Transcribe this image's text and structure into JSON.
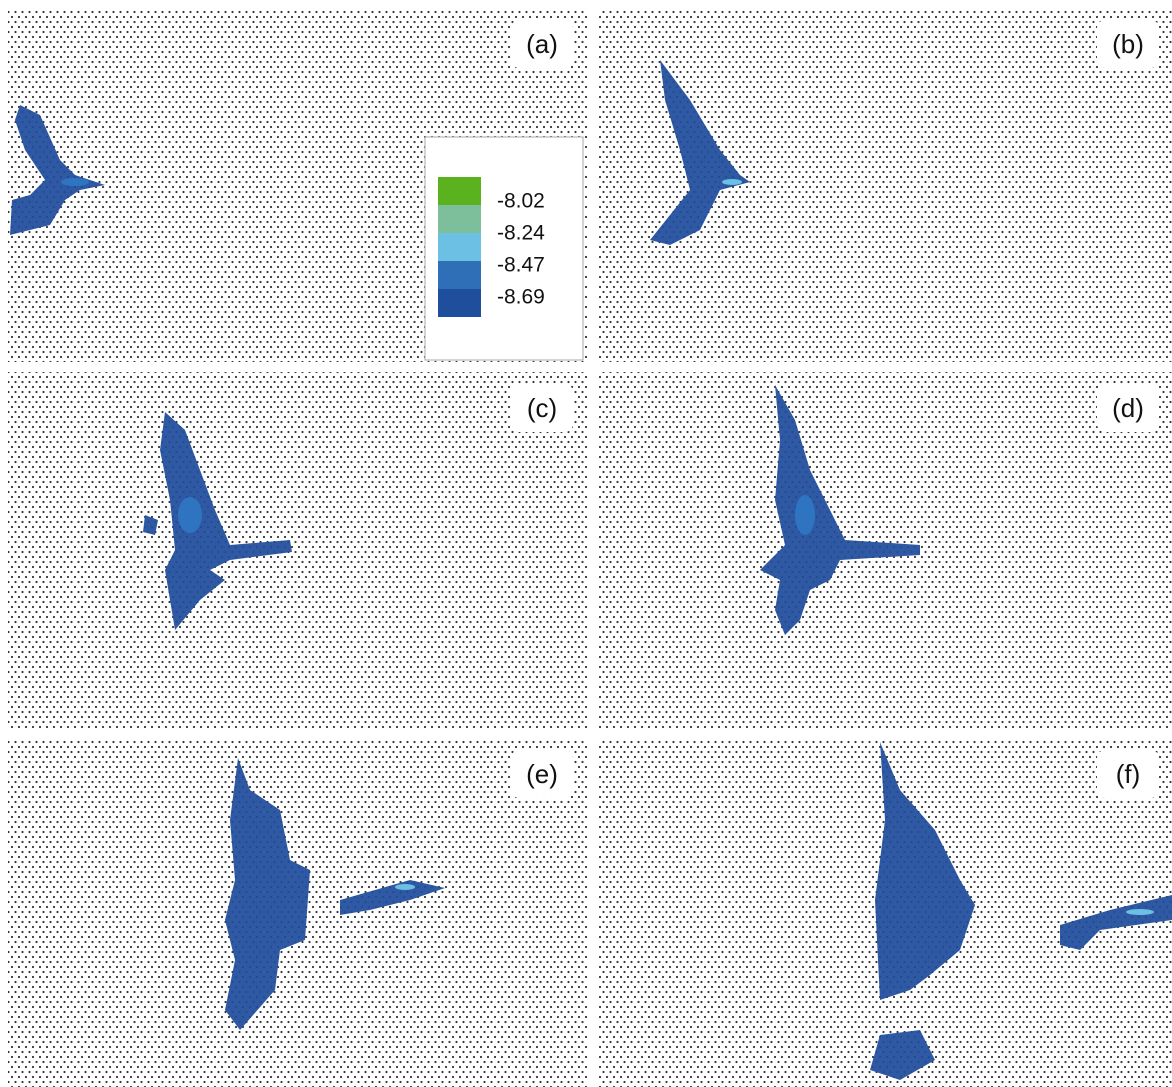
{
  "panels": [
    {
      "label": "(a)"
    },
    {
      "label": "(b)"
    },
    {
      "label": "(c)"
    },
    {
      "label": "(d)"
    },
    {
      "label": "(e)"
    },
    {
      "label": "(f)"
    }
  ],
  "legend": {
    "labels": [
      -8.02,
      -8.24,
      -8.47,
      -8.69
    ],
    "colors": [
      "#5ab21e",
      "#7dbf9a",
      "#6cc0e4",
      "#2f6fb8",
      "#1f4e9c"
    ]
  }
}
